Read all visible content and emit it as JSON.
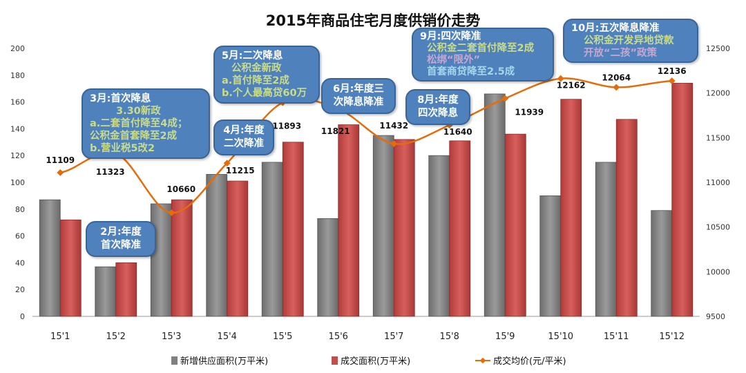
{
  "chart_data": {
    "type": "bar+line",
    "title": "2015年商品住宅月度供销价走势",
    "categories": [
      "15'1",
      "15'2",
      "15'3",
      "15'4",
      "15'5",
      "15'6",
      "15'7",
      "15'8",
      "15'9",
      "15'10",
      "15'11",
      "15'12"
    ],
    "series": [
      {
        "name": "新增供应面积(万平米)",
        "type": "bar",
        "axis": "left",
        "color": "#808080",
        "values": [
          87,
          37,
          84,
          106,
          115,
          73,
          135,
          120,
          166,
          90,
          115,
          79
        ]
      },
      {
        "name": "成交面积(万平米)",
        "type": "bar",
        "axis": "left",
        "color": "#c0504d",
        "values": [
          72,
          40,
          87,
          101,
          130,
          143,
          132,
          131,
          136,
          162,
          147,
          174
        ]
      },
      {
        "name": "成交均价(元/平米)",
        "type": "line",
        "axis": "right",
        "color": "#e46c0a",
        "values": [
          11109,
          11323,
          10660,
          11215,
          11893,
          11821,
          11432,
          11640,
          11939,
          12162,
          12064,
          12136
        ]
      }
    ],
    "y_left": {
      "min": 0,
      "max": 200,
      "ticks": [
        0,
        20,
        40,
        60,
        80,
        100,
        120,
        140,
        160,
        180,
        200
      ]
    },
    "y_right": {
      "min": 9500,
      "max": 12500,
      "ticks": [
        9500,
        10000,
        10500,
        11000,
        11500,
        12000,
        12500
      ]
    },
    "legend": "bottom",
    "grid": false
  },
  "callouts": [
    {
      "title": "2月:年度",
      "lines": [
        "首次降准"
      ]
    },
    {
      "title": "3月:首次降息",
      "lines": [
        "3.30新政",
        "a.二套首付降至4成；",
        "公积金首套降至2成",
        "b.营业税5改2"
      ]
    },
    {
      "title": "4月:年度",
      "lines": [
        "二次降准"
      ]
    },
    {
      "title": "5月:二次降息",
      "lines": [
        "公积金新政",
        "a.首付降至2成",
        "b.个人最高贷60万"
      ]
    },
    {
      "title": "6月:年度三",
      "lines": [
        "次降息降准"
      ]
    },
    {
      "title": "8月:年度",
      "lines": [
        "四次降息"
      ]
    },
    {
      "title": "9月:四次降准",
      "lines": [
        "公积金二套首付降至2成",
        "松绑“限外”",
        "首套商贷降至2.5成"
      ]
    },
    {
      "title": "10月:五次降息降准",
      "lines": [
        "公积金开发异地贷款",
        "开放“二孩”政策"
      ]
    }
  ]
}
